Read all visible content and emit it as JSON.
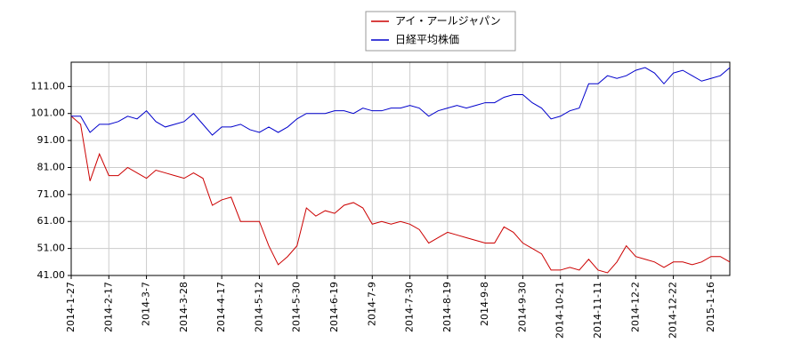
{
  "chart_data": {
    "type": "line",
    "categories": [
      "2014-1-27",
      null,
      null,
      null,
      "2014-2-17",
      null,
      null,
      null,
      "2014-3-7",
      null,
      null,
      null,
      "2014-3-28",
      null,
      null,
      null,
      "2014-4-17",
      null,
      null,
      null,
      "2014-5-12",
      null,
      null,
      null,
      "2014-5-30",
      null,
      null,
      null,
      "2014-6-19",
      null,
      null,
      null,
      "2014-7-9",
      null,
      null,
      null,
      "2014-7-30",
      null,
      null,
      null,
      "2014-8-19",
      null,
      null,
      null,
      "2014-9-8",
      null,
      null,
      null,
      "2014-9-30",
      null,
      null,
      null,
      "2014-10-21",
      null,
      null,
      null,
      "2014-11-11",
      null,
      null,
      null,
      "2014-12-2",
      null,
      null,
      null,
      "2014-12-22",
      null,
      null,
      null,
      "2015-1-16",
      null,
      null
    ],
    "series": [
      {
        "name": "アイ・アールジャパン",
        "color": "#cc0000",
        "values": [
          100,
          97,
          76,
          86,
          78,
          78,
          81,
          79,
          77,
          80,
          79,
          78,
          77,
          79,
          77,
          67,
          69,
          70,
          61,
          61,
          61,
          52,
          45,
          48,
          52,
          66,
          63,
          65,
          64,
          67,
          68,
          66,
          60,
          61,
          60,
          61,
          60,
          58,
          53,
          55,
          57,
          56,
          55,
          54,
          53,
          53,
          59,
          57,
          53,
          51,
          49,
          43,
          43,
          44,
          43,
          47,
          43,
          42,
          46,
          52,
          48,
          47,
          46,
          44,
          46,
          46,
          45,
          46,
          48,
          48,
          46
        ]
      },
      {
        "name": "日経平均株価",
        "color": "#0000cc",
        "values": [
          100,
          100,
          94,
          97,
          97,
          98,
          100,
          99,
          102,
          98,
          96,
          97,
          98,
          101,
          97,
          93,
          96,
          96,
          97,
          95,
          94,
          96,
          94,
          96,
          99,
          101,
          101,
          101,
          102,
          102,
          101,
          103,
          102,
          102,
          103,
          103,
          104,
          103,
          100,
          102,
          103,
          104,
          103,
          104,
          105,
          105,
          107,
          108,
          108,
          105,
          103,
          99,
          100,
          102,
          103,
          112,
          112,
          115,
          114,
          115,
          117,
          118,
          116,
          112,
          116,
          117,
          115,
          113,
          114,
          115,
          118
        ]
      }
    ],
    "ylim": [
      41,
      120
    ],
    "yticks": [
      {
        "value": 41,
        "label": "41.00"
      },
      {
        "value": 51,
        "label": "51.00"
      },
      {
        "value": 61,
        "label": "61.00"
      },
      {
        "value": 71,
        "label": "71.00"
      },
      {
        "value": 81,
        "label": "81.00"
      },
      {
        "value": 91,
        "label": "91.00"
      },
      {
        "value": 101,
        "label": "101.00"
      },
      {
        "value": 111,
        "label": "111.00"
      }
    ],
    "grid": true,
    "legend": "upper center"
  }
}
